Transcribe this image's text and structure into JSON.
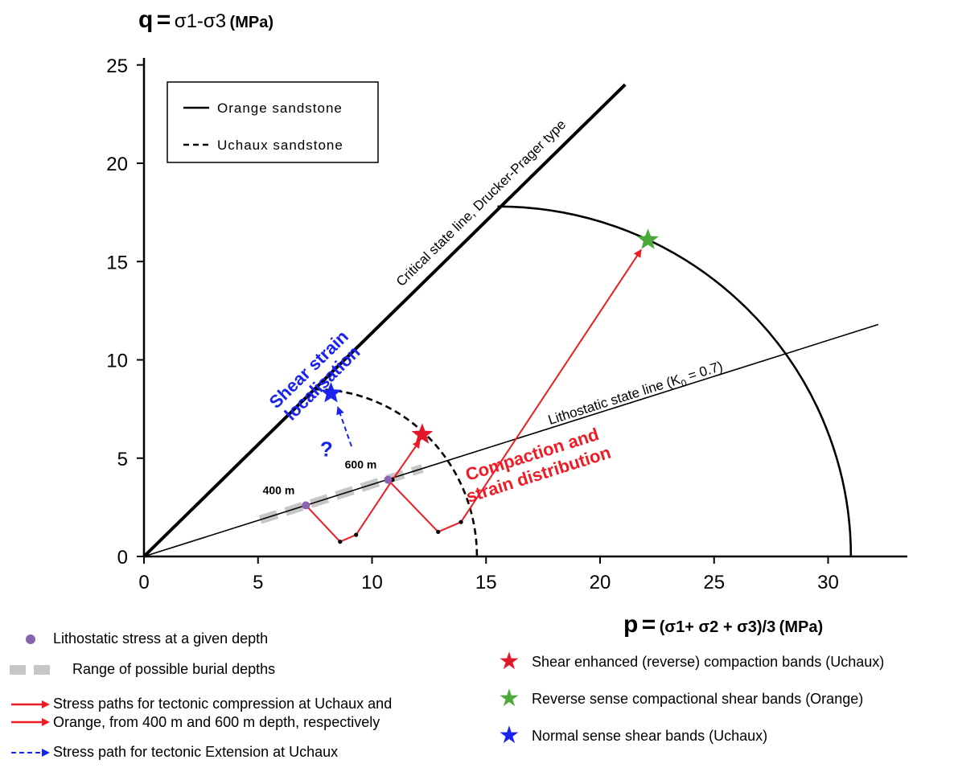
{
  "chart_data": {
    "type": "line",
    "y_label_parts": {
      "q": "q",
      "eq": "=",
      "expr": "σ1-σ3",
      "unit": "(MPa)"
    },
    "x_label_parts": {
      "p": "p",
      "eq": "=",
      "expr": "(σ1+ σ2 + σ3)/3",
      "unit": "(MPa)"
    },
    "xlim": [
      0,
      33
    ],
    "ylim": [
      0,
      25
    ],
    "x_ticks": [
      0,
      5,
      10,
      15,
      20,
      25,
      30
    ],
    "y_ticks": [
      0,
      5,
      10,
      15,
      20,
      25
    ],
    "grid": false,
    "legend": {
      "placement": "top-left",
      "entries": [
        {
          "label": "Orange sandstone",
          "style": "solid"
        },
        {
          "label": "Uchaux sandstone",
          "style": "dashed"
        }
      ]
    },
    "lines": {
      "critical_state": {
        "label": "Critical state line, Drucker-Prager type",
        "from": [
          0,
          0
        ],
        "to": [
          21.1,
          24.0
        ]
      },
      "lithostatic": {
        "label_main": "Lithostatic state line (K",
        "label_sub": "0",
        "label_end": " = 0.7)",
        "from": [
          0,
          0
        ],
        "to": [
          32.2,
          11.8
        ]
      }
    },
    "caps": {
      "orange": {
        "style": "solid",
        "p_intercept": 31.0,
        "peak": [
          15.5,
          17.8
        ]
      },
      "uchaux": {
        "style": "dashed",
        "p_intercept": 14.6,
        "peak": [
          7.5,
          8.5
        ]
      }
    },
    "burial_range": {
      "from": [
        5.1,
        1.87
      ],
      "to": [
        12.2,
        4.48
      ]
    },
    "depth_points": [
      {
        "label": "400 m",
        "p": 7.1,
        "q": 2.6
      },
      {
        "label": "600 m",
        "p": 10.7,
        "q": 3.9
      }
    ],
    "stress_paths": [
      {
        "name": "Uchaux compression",
        "points": [
          [
            7.1,
            2.6
          ],
          [
            8.6,
            0.75
          ],
          [
            9.3,
            1.1
          ],
          [
            10.9,
            3.9
          ],
          [
            12.1,
            5.9
          ]
        ]
      },
      {
        "name": "Orange compression",
        "points": [
          [
            10.7,
            3.9
          ],
          [
            12.9,
            1.25
          ],
          [
            13.9,
            1.75
          ],
          [
            21.8,
            15.6
          ]
        ]
      }
    ],
    "extension_path": {
      "from": [
        9.1,
        5.6
      ],
      "to": [
        8.5,
        7.6
      ]
    },
    "question_mark": "?",
    "stars": [
      {
        "name": "red",
        "color": "#e2172a",
        "p": 12.2,
        "q": 6.2
      },
      {
        "name": "green",
        "color": "#4caa3a",
        "p": 22.1,
        "q": 16.1
      },
      {
        "name": "blue",
        "color": "#1a22f0",
        "p": 8.2,
        "q": 8.3
      }
    ],
    "annotations": {
      "shear_line1": "Shear strain",
      "shear_line2": "localisation",
      "compaction_line1": "Compaction and",
      "compaction_line2": "strain distribution"
    },
    "colors": {
      "red": "#ee1c24",
      "blue": "#1a22f0",
      "green": "#4caa3a",
      "purple": "#8a63b0",
      "gray": "#c6c6c6"
    }
  },
  "bottom_legend": {
    "left": [
      {
        "kind": "dot",
        "text1": "Lithostatic stress at a given depth",
        "text2": ""
      },
      {
        "kind": "range",
        "text1": "Range of possible burial depths",
        "text2": ""
      },
      {
        "kind": "red-arrows",
        "text1": "Stress paths for tectonic compression at Uchaux and",
        "text2": "Orange, from 400 m and 600 m depth, respectively"
      },
      {
        "kind": "blue-arrow",
        "text1": "Stress path for tectonic Extension at Uchaux",
        "text2": ""
      }
    ],
    "right": [
      {
        "color": "#e2172a",
        "star": "★",
        "text": "Shear enhanced (reverse) compaction bands (Uchaux)"
      },
      {
        "color": "#4caa3a",
        "star": "★",
        "text": "Reverse sense compactional shear bands (Orange)"
      },
      {
        "color": "#1a22f0",
        "star": "★",
        "text": "Normal sense shear bands (Uchaux)"
      }
    ]
  }
}
